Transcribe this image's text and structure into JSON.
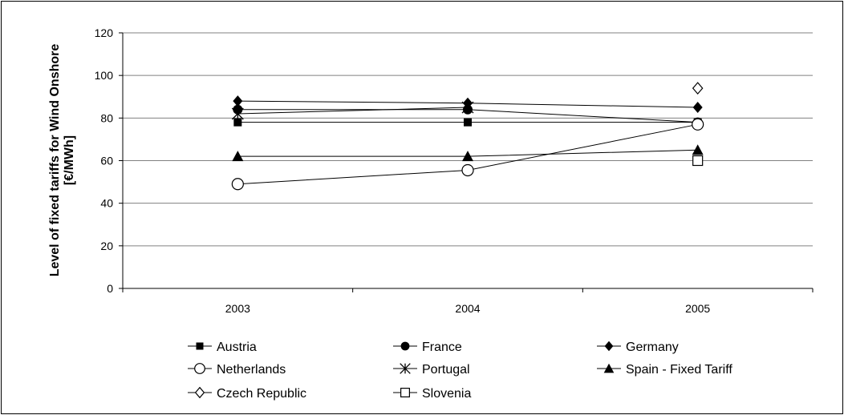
{
  "chart_data": {
    "type": "line",
    "title": "",
    "xlabel": "",
    "ylabel": "Level of fixed tariffs for Wind Onshore",
    "ylabel_line2": "[€/MWh]",
    "categories": [
      "2003",
      "2004",
      "2005"
    ],
    "ylim": [
      0,
      120
    ],
    "yticks": [
      0,
      20,
      40,
      60,
      80,
      100,
      120
    ],
    "grid": true,
    "legend": "bottom",
    "series": [
      {
        "name": "Austria",
        "marker": "square-filled",
        "values": [
          78,
          78,
          78
        ]
      },
      {
        "name": "France",
        "marker": "circle-filled",
        "values": [
          84,
          84,
          78
        ]
      },
      {
        "name": "Germany",
        "marker": "diamond-filled",
        "values": [
          88,
          87,
          85
        ]
      },
      {
        "name": "Netherlands",
        "marker": "circle-open",
        "values": [
          49,
          55.5,
          77
        ]
      },
      {
        "name": "Portugal",
        "marker": "asterisk",
        "values": [
          82,
          85,
          null
        ]
      },
      {
        "name": "Spain - Fixed Tariff",
        "marker": "triangle-filled",
        "values": [
          62,
          62,
          65
        ]
      },
      {
        "name": "Czech Republic",
        "marker": "diamond-open",
        "values": [
          null,
          null,
          94
        ]
      },
      {
        "name": "Slovenia",
        "marker": "square-open",
        "values": [
          null,
          null,
          60
        ]
      }
    ]
  }
}
